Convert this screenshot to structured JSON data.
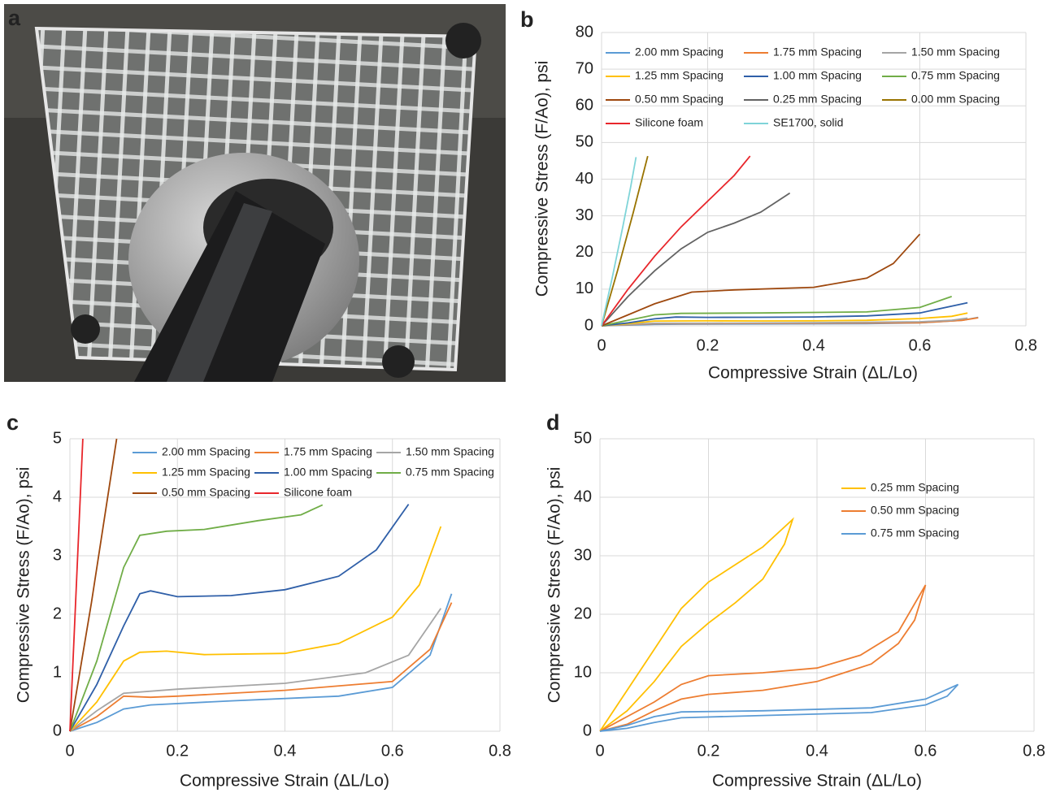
{
  "photo": {
    "panel": "a"
  },
  "chart_data": [
    {
      "type": "line",
      "panel": "b",
      "x_label": "Compressive Strain (ΔL/Lo)",
      "y_label": "Compressive Stress (F/Ao), psi",
      "xlim": [
        0,
        0.8
      ],
      "ylim": [
        0,
        80
      ],
      "xticks": [
        0,
        0.2,
        0.4,
        0.6,
        0.8
      ],
      "yticks": [
        0,
        10,
        20,
        30,
        40,
        50,
        60,
        70,
        80
      ],
      "grid": true,
      "legend": "upper left",
      "series": [
        {
          "name": "2.00 mm Spacing",
          "color": "#5b9bd5",
          "x": [
            0,
            0.05,
            0.1,
            0.15,
            0.3,
            0.5,
            0.6,
            0.68,
            0.71
          ],
          "values": [
            0,
            0.2,
            0.4,
            0.45,
            0.5,
            0.6,
            0.8,
            1.5,
            2.3
          ]
        },
        {
          "name": "1.75 mm Spacing",
          "color": "#ed7d31",
          "x": [
            0,
            0.05,
            0.1,
            0.2,
            0.4,
            0.6,
            0.68,
            0.71
          ],
          "values": [
            0,
            0.3,
            0.6,
            0.6,
            0.7,
            0.85,
            1.5,
            2.2
          ]
        },
        {
          "name": "1.50 mm Spacing",
          "color": "#a5a5a5",
          "x": [
            0,
            0.05,
            0.1,
            0.2,
            0.4,
            0.6,
            0.66,
            0.69
          ],
          "values": [
            0,
            0.4,
            0.7,
            0.72,
            0.85,
            1.1,
            1.5,
            2.1
          ]
        },
        {
          "name": "1.25 mm Spacing",
          "color": "#ffc000",
          "x": [
            0,
            0.05,
            0.1,
            0.2,
            0.3,
            0.4,
            0.5,
            0.6,
            0.66,
            0.69
          ],
          "values": [
            0,
            0.6,
            1.3,
            1.35,
            1.32,
            1.35,
            1.5,
            2,
            2.6,
            3.5
          ]
        },
        {
          "name": "1.00 mm Spacing",
          "color": "#2f5fa8",
          "x": [
            0,
            0.05,
            0.1,
            0.14,
            0.2,
            0.3,
            0.4,
            0.5,
            0.6,
            0.69
          ],
          "values": [
            0,
            0.8,
            1.9,
            2.4,
            2.3,
            2.32,
            2.42,
            2.7,
            3.5,
            6.3
          ]
        },
        {
          "name": "0.75 mm Spacing",
          "color": "#70ad47",
          "x": [
            0,
            0.05,
            0.1,
            0.15,
            0.3,
            0.5,
            0.6,
            0.66
          ],
          "values": [
            0,
            1.5,
            3,
            3.4,
            3.5,
            3.8,
            5,
            8
          ]
        },
        {
          "name": "0.50 mm Spacing",
          "color": "#9e480e",
          "x": [
            0,
            0.05,
            0.1,
            0.17,
            0.25,
            0.4,
            0.5,
            0.55,
            0.6
          ],
          "values": [
            0,
            3,
            6,
            9.2,
            9.8,
            10.5,
            13,
            17,
            25
          ]
        },
        {
          "name": "0.25 mm Spacing",
          "color": "#636363",
          "x": [
            0,
            0.05,
            0.1,
            0.15,
            0.2,
            0.25,
            0.3,
            0.355
          ],
          "values": [
            0,
            8,
            15,
            21,
            25.5,
            28,
            31,
            36.2
          ]
        },
        {
          "name": "0.00 mm Spacing",
          "color": "#997300",
          "x": [
            0,
            0.03,
            0.06,
            0.087
          ],
          "values": [
            0,
            15,
            31,
            46.3
          ]
        },
        {
          "name": "Silicone foam",
          "color": "#e8262b",
          "x": [
            0,
            0.05,
            0.1,
            0.15,
            0.2,
            0.25,
            0.28
          ],
          "values": [
            0,
            10,
            19,
            27,
            34,
            41,
            46.3
          ]
        },
        {
          "name": "SE1700, solid",
          "color": "#7fd4d8",
          "x": [
            0,
            0.02,
            0.04,
            0.055,
            0.065
          ],
          "values": [
            0,
            13,
            27,
            38,
            46
          ]
        }
      ]
    },
    {
      "type": "line",
      "panel": "c",
      "x_label": "Compressive Strain (ΔL/Lo)",
      "y_label": "Compressive Stress (F/Ao), psi",
      "xlim": [
        0,
        0.8
      ],
      "ylim": [
        0,
        5
      ],
      "xticks": [
        0,
        0.2,
        0.4,
        0.6,
        0.8
      ],
      "yticks": [
        0,
        1,
        2,
        3,
        4,
        5
      ],
      "grid": true,
      "legend": "upper left",
      "series": [
        {
          "name": "2.00 mm Spacing",
          "color": "#5b9bd5",
          "x": [
            0,
            0.05,
            0.1,
            0.15,
            0.3,
            0.5,
            0.6,
            0.67,
            0.71
          ],
          "values": [
            0,
            0.15,
            0.38,
            0.45,
            0.52,
            0.6,
            0.75,
            1.3,
            2.35
          ]
        },
        {
          "name": "1.75 mm Spacing",
          "color": "#ed7d31",
          "x": [
            0,
            0.05,
            0.1,
            0.15,
            0.2,
            0.4,
            0.6,
            0.67,
            0.71
          ],
          "values": [
            0,
            0.25,
            0.6,
            0.58,
            0.6,
            0.7,
            0.85,
            1.4,
            2.2
          ]
        },
        {
          "name": "1.50 mm Spacing",
          "color": "#a5a5a5",
          "x": [
            0,
            0.05,
            0.1,
            0.2,
            0.4,
            0.55,
            0.63,
            0.69
          ],
          "values": [
            0,
            0.35,
            0.65,
            0.72,
            0.82,
            1,
            1.3,
            2.1
          ]
        },
        {
          "name": "1.25 mm Spacing",
          "color": "#ffc000",
          "x": [
            0,
            0.05,
            0.1,
            0.13,
            0.18,
            0.25,
            0.4,
            0.5,
            0.6,
            0.65,
            0.69
          ],
          "values": [
            0,
            0.5,
            1.2,
            1.35,
            1.37,
            1.31,
            1.33,
            1.5,
            1.95,
            2.5,
            3.5
          ]
        },
        {
          "name": "1.00 mm Spacing",
          "color": "#2f5fa8",
          "x": [
            0,
            0.05,
            0.1,
            0.13,
            0.15,
            0.2,
            0.3,
            0.4,
            0.5,
            0.57,
            0.63
          ],
          "values": [
            0,
            0.8,
            1.8,
            2.35,
            2.4,
            2.3,
            2.32,
            2.42,
            2.65,
            3.1,
            3.88
          ]
        },
        {
          "name": "0.75 mm Spacing",
          "color": "#70ad47",
          "x": [
            0,
            0.05,
            0.1,
            0.13,
            0.18,
            0.25,
            0.35,
            0.43,
            0.47
          ],
          "values": [
            0,
            1.2,
            2.8,
            3.35,
            3.42,
            3.45,
            3.6,
            3.7,
            3.87
          ]
        },
        {
          "name": "0.50 mm Spacing",
          "color": "#9e480e",
          "x": [
            0,
            0.04,
            0.087
          ],
          "values": [
            0,
            2.2,
            5
          ]
        },
        {
          "name": "Silicone foam",
          "color": "#e8262b",
          "x": [
            0,
            0.024
          ],
          "values": [
            0,
            5
          ]
        }
      ]
    },
    {
      "type": "line",
      "panel": "d",
      "x_label": "Compressive Strain (ΔL/Lo)",
      "y_label": "Compressive Stress (F/Ao), psi",
      "xlim": [
        0,
        0.8
      ],
      "ylim": [
        0,
        50
      ],
      "xticks": [
        0,
        0.2,
        0.4,
        0.6,
        0.8
      ],
      "yticks": [
        0,
        10,
        20,
        30,
        40,
        50
      ],
      "grid": true,
      "legend": "center right",
      "series": [
        {
          "name": "0.25 mm Spacing",
          "color": "#ffc000",
          "x": [
            0,
            0.05,
            0.1,
            0.15,
            0.2,
            0.25,
            0.3,
            0.355,
            0.34,
            0.3,
            0.25,
            0.2,
            0.15,
            0.1,
            0.05,
            0
          ],
          "values": [
            0,
            7,
            14,
            21,
            25.5,
            28.5,
            31.5,
            36.2,
            32,
            26,
            22,
            18.5,
            14.5,
            8.5,
            3.5,
            0
          ]
        },
        {
          "name": "0.50 mm Spacing",
          "color": "#ed7d31",
          "x": [
            0,
            0.05,
            0.1,
            0.15,
            0.2,
            0.3,
            0.4,
            0.48,
            0.55,
            0.6,
            0.58,
            0.55,
            0.5,
            0.4,
            0.3,
            0.2,
            0.15,
            0.1,
            0.05,
            0
          ],
          "values": [
            0,
            2.5,
            5,
            8,
            9.5,
            10,
            10.8,
            13,
            17,
            25,
            19,
            15,
            11.5,
            8.5,
            7,
            6.3,
            5.5,
            3.5,
            1.2,
            0
          ]
        },
        {
          "name": "0.75 mm Spacing",
          "color": "#5b9bd5",
          "x": [
            0,
            0.05,
            0.1,
            0.15,
            0.3,
            0.5,
            0.6,
            0.66,
            0.64,
            0.6,
            0.5,
            0.3,
            0.15,
            0.1,
            0.05,
            0
          ],
          "values": [
            0,
            1,
            2.5,
            3.3,
            3.5,
            4,
            5.5,
            8,
            6,
            4.5,
            3.2,
            2.7,
            2.3,
            1.5,
            0.5,
            0
          ]
        }
      ]
    }
  ]
}
